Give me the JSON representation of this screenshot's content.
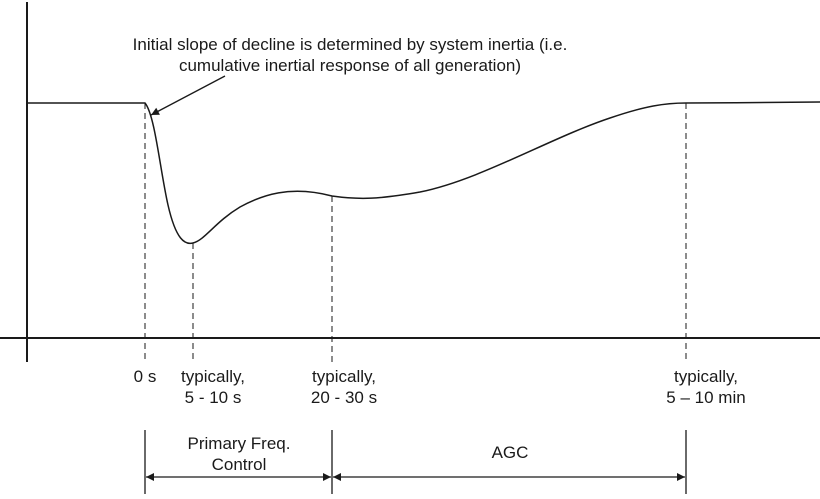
{
  "annotation": {
    "line1": "Initial slope of decline is determined by system inertia (i.e.",
    "line2": "cumulative inertial response of all generation)"
  },
  "time_markers": [
    {
      "line1": "0 s",
      "line2": ""
    },
    {
      "line1": "typically,",
      "line2": "5 - 10 s"
    },
    {
      "line1": "typically,",
      "line2": "20 - 30 s"
    },
    {
      "line1": "typically,",
      "line2": "5 – 10 min"
    }
  ],
  "phases": {
    "primary": {
      "line1": "Primary Freq.",
      "line2": "Control"
    },
    "agc": {
      "label": "AGC"
    }
  },
  "colors": {
    "line": "#1a1a1a",
    "background": "#ffffff"
  }
}
